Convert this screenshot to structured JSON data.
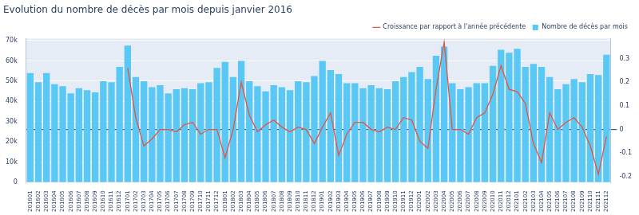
{
  "chart_data": {
    "type": "bar",
    "title": "Evolution du nombre de décès par mois depuis janvier 2016",
    "categories": [
      "201601",
      "201602",
      "201603",
      "201604",
      "201605",
      "201606",
      "201607",
      "201608",
      "201609",
      "201610",
      "201611",
      "201612",
      "201701",
      "201702",
      "201703",
      "201704",
      "201705",
      "201706",
      "201707",
      "201708",
      "201709",
      "201710",
      "201711",
      "201712",
      "201801",
      "201802",
      "201803",
      "201804",
      "201805",
      "201806",
      "201807",
      "201808",
      "201809",
      "201810",
      "201811",
      "201812",
      "201901",
      "201902",
      "201903",
      "201904",
      "201905",
      "201906",
      "201907",
      "201908",
      "201909",
      "201910",
      "201911",
      "201912",
      "202001",
      "202002",
      "202003",
      "202004",
      "202005",
      "202006",
      "202007",
      "202008",
      "202009",
      "202010",
      "202011",
      "202012",
      "202101",
      "202102",
      "202103",
      "202104",
      "202105",
      "202106",
      "202107",
      "202108",
      "202109",
      "202110",
      "202111",
      "202112"
    ],
    "series": [
      {
        "name": "Nombre de décès par mois",
        "type": "bar",
        "color": "#5ac8f5",
        "values": [
          54000,
          49500,
          54000,
          48500,
          47500,
          44000,
          46500,
          45500,
          44500,
          50000,
          49500,
          57000,
          67500,
          52000,
          50000,
          47000,
          48000,
          44000,
          46000,
          46500,
          46000,
          49000,
          49500,
          56500,
          59500,
          52000,
          60000,
          50000,
          47500,
          45000,
          48000,
          47000,
          45500,
          50000,
          49500,
          52500,
          60000,
          55500,
          53500,
          49000,
          49000,
          46500,
          48000,
          46500,
          46000,
          50000,
          52000,
          54500,
          57000,
          51000,
          62500,
          67000,
          49000,
          46000,
          47000,
          49000,
          49000,
          57500,
          65500,
          64000,
          66000,
          57000,
          58500,
          57000,
          52000,
          46000,
          48500,
          51000,
          49500,
          53500,
          53000,
          63000
        ]
      },
      {
        "name": "Croissance par rapport à l'année précédente",
        "type": "line",
        "color": "#e8533f",
        "axis": "y2",
        "values": [
          null,
          null,
          null,
          null,
          null,
          null,
          null,
          null,
          null,
          null,
          null,
          null,
          0.26,
          0.05,
          -0.07,
          -0.04,
          0.0,
          0.0,
          -0.01,
          0.02,
          0.03,
          -0.02,
          0.0,
          0.0,
          -0.12,
          0.0,
          0.2,
          0.06,
          -0.01,
          0.02,
          0.04,
          0.01,
          -0.01,
          0.01,
          0.0,
          -0.06,
          0.01,
          0.07,
          -0.11,
          -0.02,
          0.03,
          0.03,
          0.0,
          -0.01,
          0.01,
          0.0,
          0.05,
          0.04,
          -0.05,
          -0.08,
          0.17,
          0.37,
          0.0,
          0.0,
          -0.02,
          0.05,
          0.07,
          0.15,
          0.27,
          0.17,
          0.16,
          0.11,
          -0.06,
          -0.14,
          0.07,
          0.0,
          0.03,
          0.05,
          0.01,
          -0.07,
          -0.19,
          -0.03
        ]
      }
    ],
    "ylim": [
      0,
      71000
    ],
    "yticks": [
      0,
      {
        "value": 10000,
        "label": "10k"
      },
      {
        "value": 20000,
        "label": "20k"
      },
      {
        "value": 30000,
        "label": "30k"
      },
      {
        "value": 40000,
        "label": "40k"
      },
      {
        "value": 50000,
        "label": "50k"
      },
      {
        "value": 60000,
        "label": "60k"
      },
      {
        "value": 70000,
        "label": "70k"
      }
    ],
    "y2lim": [
      -0.225,
      0.385
    ],
    "y2ticks": [
      -0.2,
      -0.1,
      0,
      0.1,
      0.2,
      0.3
    ],
    "grid": true,
    "legend": "top-right"
  }
}
